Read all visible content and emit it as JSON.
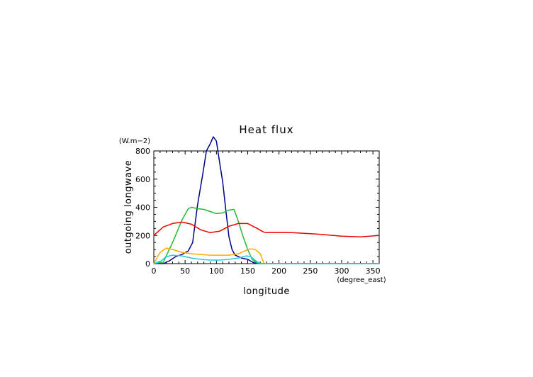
{
  "chart_data": {
    "type": "line",
    "title": "Heat flux",
    "xlabel": "longitude",
    "ylabel": "outgoing longwave",
    "x_unit": "(degree_east)",
    "y_unit": "(W.m−2)",
    "xlim": [
      0,
      360
    ],
    "ylim": [
      0,
      800
    ],
    "x_ticks": [
      0,
      50,
      100,
      150,
      200,
      250,
      300,
      350
    ],
    "y_ticks": [
      0,
      200,
      400,
      600,
      800
    ],
    "grid": false,
    "series": [
      {
        "color": "#00008b",
        "x": [
          0,
          15,
          25,
          35,
          45,
          55,
          62,
          70,
          78,
          84,
          90,
          95,
          100,
          105,
          110,
          115,
          120,
          125,
          130,
          140,
          150,
          160,
          170,
          180,
          250,
          360
        ],
        "values": [
          0,
          0,
          20,
          50,
          65,
          90,
          150,
          420,
          630,
          800,
          850,
          900,
          870,
          720,
          580,
          380,
          190,
          100,
          60,
          40,
          30,
          5,
          0,
          0,
          0,
          0
        ]
      },
      {
        "color": "#22bb33",
        "x": [
          0,
          15,
          30,
          45,
          55,
          60,
          70,
          80,
          90,
          100,
          110,
          120,
          128,
          135,
          142,
          150,
          157,
          165,
          175,
          250,
          360
        ],
        "values": [
          0,
          10,
          150,
          310,
          390,
          400,
          390,
          385,
          370,
          355,
          360,
          380,
          385,
          300,
          200,
          100,
          30,
          5,
          0,
          0,
          0
        ]
      },
      {
        "color": "#ee0000",
        "x": [
          0,
          15,
          30,
          45,
          60,
          75,
          90,
          105,
          120,
          135,
          150,
          165,
          175,
          180,
          220,
          260,
          300,
          330,
          360
        ],
        "values": [
          200,
          260,
          285,
          295,
          280,
          240,
          220,
          230,
          265,
          285,
          285,
          250,
          225,
          220,
          220,
          210,
          195,
          190,
          200
        ]
      },
      {
        "color": "#ffaa00",
        "x": [
          0,
          10,
          20,
          30,
          45,
          60,
          75,
          90,
          105,
          120,
          135,
          148,
          155,
          162,
          170,
          176,
          250,
          360
        ],
        "values": [
          0,
          80,
          110,
          100,
          80,
          70,
          65,
          60,
          60,
          60,
          70,
          95,
          105,
          100,
          70,
          0,
          0,
          0
        ]
      },
      {
        "color": "#22ccdd",
        "x": [
          0,
          12,
          20,
          30,
          45,
          60,
          75,
          90,
          105,
          120,
          135,
          148,
          155,
          160,
          166,
          172,
          250,
          360
        ],
        "values": [
          0,
          20,
          50,
          60,
          55,
          40,
          30,
          25,
          25,
          30,
          40,
          55,
          50,
          30,
          10,
          0,
          0,
          0
        ]
      }
    ]
  }
}
